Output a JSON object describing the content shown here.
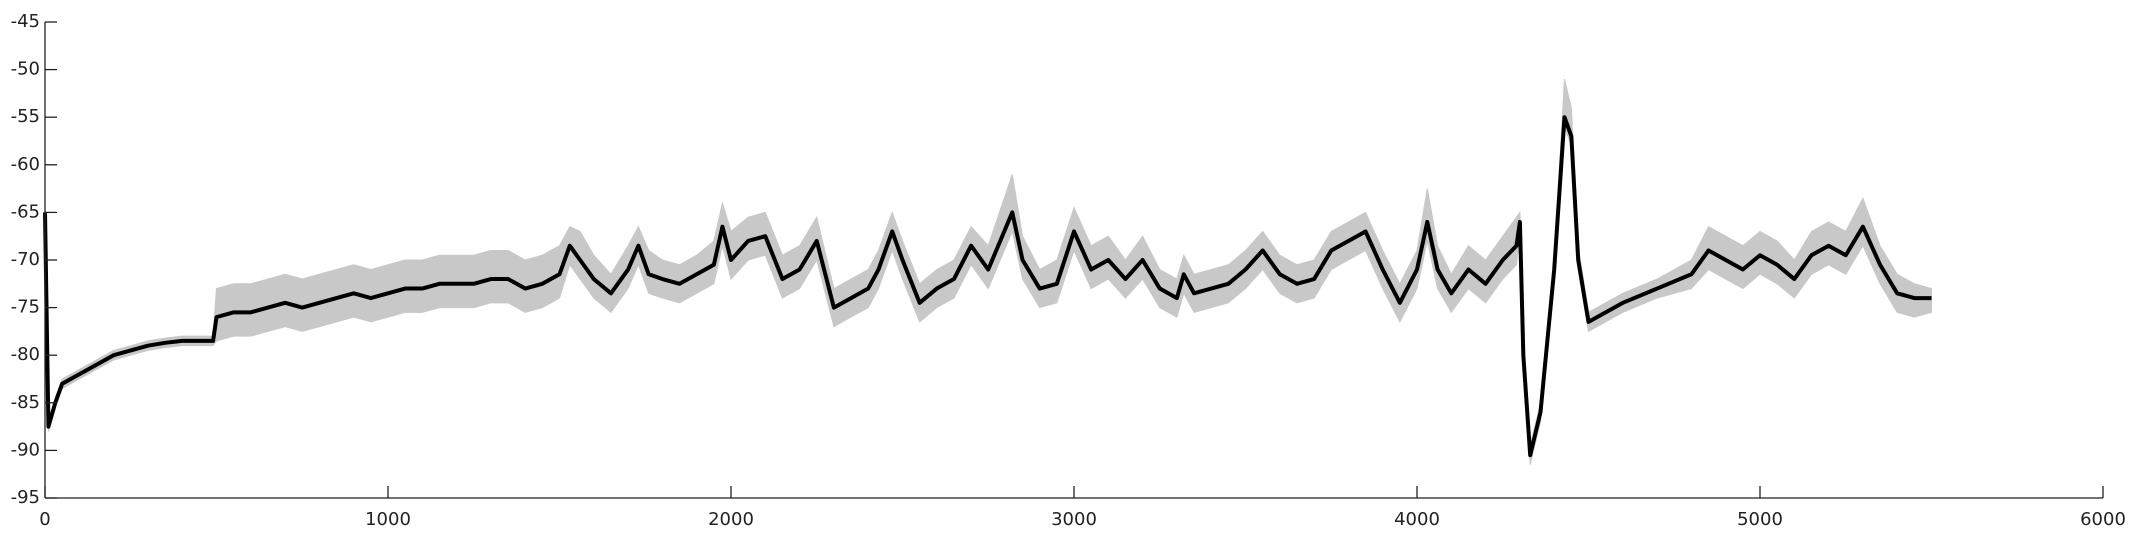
{
  "chart_data": {
    "type": "line",
    "x": [
      0,
      10,
      30,
      50,
      100,
      150,
      200,
      250,
      300,
      350,
      400,
      450,
      490,
      500,
      550,
      600,
      650,
      700,
      750,
      800,
      850,
      900,
      950,
      1000,
      1050,
      1100,
      1150,
      1200,
      1250,
      1300,
      1350,
      1400,
      1450,
      1500,
      1530,
      1560,
      1600,
      1650,
      1700,
      1730,
      1760,
      1800,
      1850,
      1900,
      1950,
      1975,
      2000,
      2050,
      2100,
      2150,
      2200,
      2250,
      2300,
      2350,
      2400,
      2430,
      2470,
      2500,
      2550,
      2600,
      2650,
      2700,
      2750,
      2820,
      2850,
      2900,
      2950,
      3000,
      3050,
      3100,
      3150,
      3200,
      3250,
      3300,
      3320,
      3350,
      3400,
      3450,
      3500,
      3550,
      3600,
      3650,
      3700,
      3750,
      3800,
      3850,
      3900,
      3950,
      4000,
      4030,
      4060,
      4100,
      4150,
      4200,
      4250,
      4290,
      4300,
      4310,
      4330,
      4360,
      4400,
      4430,
      4450,
      4470,
      4500,
      4550,
      4600,
      4700,
      4800,
      4850,
      4900,
      4950,
      5000,
      5050,
      5100,
      5150,
      5200,
      5250,
      5300,
      5350,
      5400,
      5450,
      5500
    ],
    "series": [
      {
        "color": "#c8c8c8",
        "values": [
          -65,
          -87,
          -84.5,
          -82.5,
          -81.5,
          -80.5,
          -79.5,
          -79,
          -78.5,
          -78.2,
          -78,
          -78,
          -78,
          -73,
          -72.5,
          -72.5,
          -72,
          -71.5,
          -72,
          -71.5,
          -71,
          -70.5,
          -71,
          -70.5,
          -70,
          -70,
          -69.5,
          -69.5,
          -69.5,
          -69,
          -69,
          -70,
          -69.5,
          -68.5,
          -66.5,
          -67,
          -69.5,
          -71.5,
          -68.5,
          -66.5,
          -69,
          -70,
          -70.5,
          -69.5,
          -68,
          -64,
          -67,
          -65.5,
          -65,
          -69.5,
          -68.5,
          -65.5,
          -73,
          -72,
          -71,
          -69,
          -65,
          -68,
          -72.5,
          -71,
          -70,
          -66.5,
          -68.5,
          -61,
          -67.5,
          -71,
          -70,
          -64.5,
          -68.5,
          -67.5,
          -70,
          -67.5,
          -71,
          -72,
          -69.5,
          -71.5,
          -71,
          -70.5,
          -69,
          -67,
          -69.5,
          -70.5,
          -70,
          -67,
          -66,
          -65,
          -69,
          -72.5,
          -69,
          -62.5,
          -68.5,
          -71.5,
          -68.5,
          -70,
          -67.5,
          -65.5,
          -65,
          -79,
          -89.5,
          -85,
          -70,
          -51,
          -54,
          -68.5,
          -75.5,
          -74.5,
          -73.5,
          -72,
          -70,
          -66.5,
          -67.5,
          -68.5,
          -67,
          -68,
          -70,
          -67,
          -66,
          -67,
          -63.5,
          -68.5,
          -71.5,
          -72.5,
          -73
        ]
      },
      {
        "color": "#c8c8c8",
        "values": [
          -66,
          -88,
          -85.5,
          -83.5,
          -82.5,
          -81.5,
          -80.5,
          -80,
          -79.5,
          -79.2,
          -79,
          -79,
          -79,
          -78.5,
          -78,
          -78,
          -77.5,
          -77,
          -77.5,
          -77,
          -76.5,
          -76,
          -76.5,
          -76,
          -75.5,
          -75.5,
          -75,
          -75,
          -75,
          -74.5,
          -74.5,
          -75.5,
          -75,
          -74,
          -70.5,
          -72,
          -74,
          -75.5,
          -73,
          -70.5,
          -73.5,
          -74,
          -74.5,
          -73.5,
          -72.5,
          -68.5,
          -72,
          -70,
          -69.5,
          -74,
          -73,
          -70,
          -77,
          -76,
          -75,
          -73,
          -69,
          -72,
          -76.5,
          -75,
          -74,
          -70.5,
          -73,
          -67,
          -72,
          -75,
          -74.5,
          -69,
          -73,
          -72,
          -74,
          -72,
          -75,
          -76,
          -73.5,
          -75.5,
          -75,
          -74.5,
          -73,
          -71,
          -73.5,
          -74.5,
          -74,
          -71,
          -70,
          -69,
          -73,
          -76.5,
          -73,
          -68,
          -73,
          -75.5,
          -73,
          -74.5,
          -72,
          -70.5,
          -67,
          -81,
          -91.5,
          -87,
          -72,
          -56,
          -58,
          -71,
          -77.5,
          -76.5,
          -75.5,
          -74,
          -73,
          -71,
          -72,
          -73,
          -71.5,
          -72.5,
          -74,
          -71.5,
          -70.5,
          -71.5,
          -68.5,
          -72.5,
          -75.5,
          -76,
          -75.5
        ]
      },
      {
        "color": "#000000",
        "values": [
          -65,
          -87.5,
          -85,
          -83,
          -82,
          -81,
          -80,
          -79.5,
          -79,
          -78.7,
          -78.5,
          -78.5,
          -78.5,
          -76,
          -75.5,
          -75.5,
          -75,
          -74.5,
          -75,
          -74.5,
          -74,
          -73.5,
          -74,
          -73.5,
          -73,
          -73,
          -72.5,
          -72.5,
          -72.5,
          -72,
          -72,
          -73,
          -72.5,
          -71.5,
          -68.5,
          -70,
          -72,
          -73.5,
          -71,
          -68.5,
          -71.5,
          -72,
          -72.5,
          -71.5,
          -70.5,
          -66.5,
          -70,
          -68,
          -67.5,
          -72,
          -71,
          -68,
          -75,
          -74,
          -73,
          -71,
          -67,
          -70,
          -74.5,
          -73,
          -72,
          -68.5,
          -71,
          -65,
          -70,
          -73,
          -72.5,
          -67,
          -71,
          -70,
          -72,
          -70,
          -73,
          -74,
          -71.5,
          -73.5,
          -73,
          -72.5,
          -71,
          -69,
          -71.5,
          -72.5,
          -72,
          -69,
          -68,
          -67,
          -71,
          -74.5,
          -71,
          -66,
          -71,
          -73.5,
          -71,
          -72.5,
          -70,
          -68.5,
          -66,
          -80,
          -90.5,
          -86,
          -71,
          -55,
          -57,
          -70,
          -76.5,
          -75.5,
          -74.5,
          -73,
          -71.5,
          -69,
          -70,
          -71,
          -69.5,
          -70.5,
          -72,
          -69.5,
          -68.5,
          -69.5,
          -66.5,
          -70.5,
          -73.5,
          -74,
          -74
        ]
      }
    ],
    "xlim": [
      0,
      6000
    ],
    "xticks": [
      0,
      1000,
      2000,
      3000,
      4000,
      5000,
      6000
    ],
    "ylim": [
      -95,
      -45
    ],
    "yticks": [
      -95,
      -90,
      -85,
      -80,
      -75,
      -70,
      -65,
      -60,
      -55,
      -50,
      -45
    ]
  }
}
